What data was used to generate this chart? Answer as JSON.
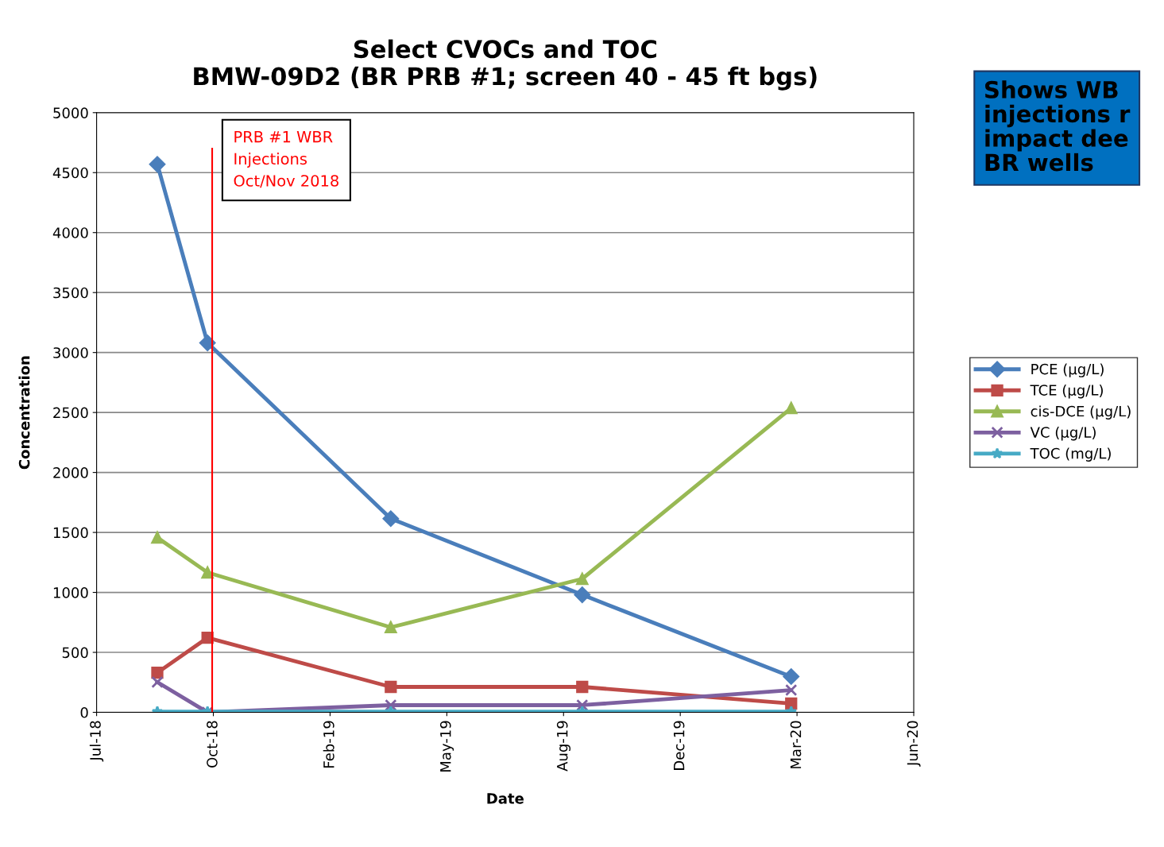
{
  "chart_data": {
    "type": "line",
    "title": "Select CVOCs and TOC\nBMW-09D2 (BR PRB #1; screen 40 - 45 ft bgs)",
    "xlabel": "Date",
    "ylabel": "Concentration",
    "x": [
      "2018-09-10",
      "2018-10-23",
      "2019-03-29",
      "2019-09-09",
      "2020-03-06"
    ],
    "series": [
      {
        "name": "PCE (µg/L)",
        "color": "#4a7ebb",
        "marker": "diamond",
        "values": [
          4570,
          3080,
          1615,
          980,
          298
        ]
      },
      {
        "name": "TCE (µg/L)",
        "color": "#be4b48",
        "marker": "square",
        "values": [
          330,
          622,
          212,
          212,
          73
        ]
      },
      {
        "name": "cis-DCE (µg/L)",
        "color": "#98b954",
        "marker": "triangle",
        "values": [
          1457,
          1166,
          709,
          1113,
          2537
        ]
      },
      {
        "name": "VC (µg/L)",
        "color": "#7d60a0",
        "marker": "cross",
        "values": [
          252,
          0,
          60,
          60,
          185
        ]
      },
      {
        "name": "TOC (mg/L)",
        "color": "#46aac5",
        "marker": "star",
        "values": [
          5,
          5,
          5,
          5,
          5
        ]
      }
    ],
    "xlim": [
      "2018-07-20",
      "2020-06-19"
    ],
    "xticks": [
      {
        "value": "2018-07-20",
        "label": "Jul-18"
      },
      {
        "value": "2018-10-28",
        "label": "Oct-18"
      },
      {
        "value": "2019-02-05",
        "label": "Feb-19"
      },
      {
        "value": "2019-05-16",
        "label": "May-19"
      },
      {
        "value": "2019-08-24",
        "label": "Aug-19"
      },
      {
        "value": "2019-12-02",
        "label": "Dec-19"
      },
      {
        "value": "2020-03-11",
        "label": "Mar-20"
      },
      {
        "value": "2020-06-19",
        "label": "Jun-20"
      }
    ],
    "ylim": [
      0,
      5000
    ],
    "yticks": [
      0,
      500,
      1000,
      1500,
      2000,
      2500,
      3000,
      3500,
      4000,
      4500,
      5000
    ],
    "grid": "y",
    "legend": "right",
    "line_style": "solid",
    "ref_lines": [
      {
        "axis": "x",
        "value": "2018-10-27",
        "label": "PRB #1 WBR\nInjections\nOct/Nov 2018",
        "color": "#ff0000"
      }
    ],
    "annotations": [
      "Shows WB\ninjections r\nimpact dee\nBR wells"
    ]
  }
}
